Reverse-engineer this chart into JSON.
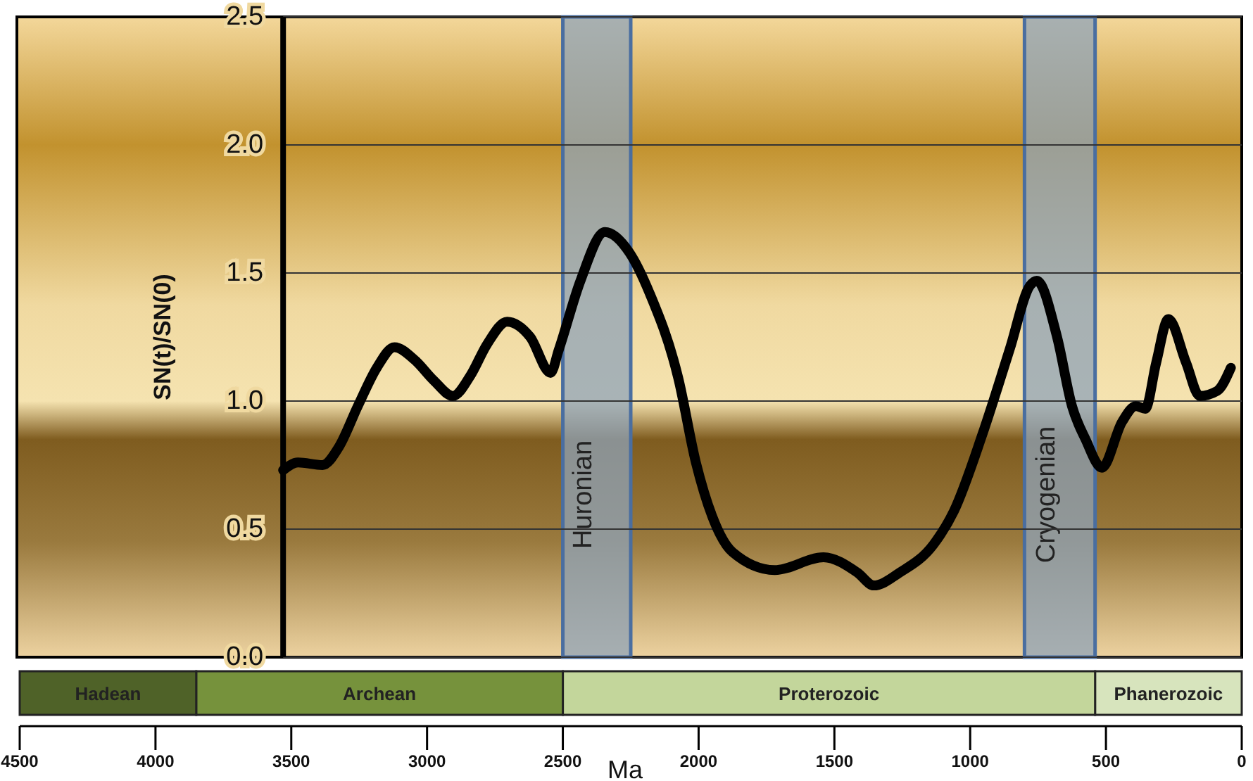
{
  "chart_data": [
    {
      "type": "line",
      "ylabel": "SN(t)/SN(0)",
      "x": [
        3530,
        3475,
        3385,
        3325,
        3255,
        3185,
        3120,
        3045,
        2975,
        2905,
        2840,
        2780,
        2705,
        2620,
        2545,
        2515,
        2435,
        2345,
        2255,
        2180,
        2075,
        2010,
        1950,
        1875,
        1720,
        1540,
        1415,
        1355,
        1260,
        1135,
        1060,
        955,
        855,
        780,
        755,
        680,
        625,
        575,
        515,
        440,
        390,
        355,
        315,
        270,
        205,
        155,
        90,
        40
      ],
      "series": [
        {
          "color": "#000000",
          "values": [
            0.73,
            0.76,
            0.75,
            0.82,
            0.98,
            1.13,
            1.21,
            1.16,
            1.08,
            1.02,
            1.1,
            1.22,
            1.31,
            1.25,
            1.11,
            1.2,
            1.47,
            1.66,
            1.58,
            1.42,
            1.09,
            0.76,
            0.55,
            0.41,
            0.34,
            0.39,
            0.33,
            0.28,
            0.33,
            0.44,
            0.57,
            0.87,
            1.2,
            1.45,
            1.47,
            1.25,
            0.98,
            0.85,
            0.74,
            0.92,
            0.98,
            0.97,
            1.15,
            1.32,
            1.15,
            1.02,
            1.04,
            1.13
          ]
        }
      ],
      "xlim": [
        4500,
        0
      ],
      "ylim": [
        0,
        2.5
      ],
      "yticks": [
        {
          "value": 0,
          "label": "0.0"
        },
        0.5,
        {
          "value": 1,
          "label": "1.0"
        },
        1.5,
        {
          "value": 2,
          "label": "2.0"
        },
        2.5
      ],
      "grid": "y",
      "tick_labels": "y",
      "line_style": "solid",
      "marker": "none",
      "bands": [
        {
          "axis": "x",
          "from": 2500,
          "to": 2250,
          "label": "Huronian",
          "color": "#8fa3b8"
        },
        {
          "axis": "x",
          "from": 800,
          "to": 540,
          "label": "Cryogenian",
          "color": "#8fa3b8"
        }
      ]
    },
    {
      "type": "bar",
      "orientation": "horizontal",
      "stacked": true,
      "categories": [
        null
      ],
      "xlabel": "Ma",
      "xlim": [
        4500,
        0
      ],
      "xticks": [
        4500,
        4000,
        3500,
        3000,
        2500,
        2000,
        1500,
        1000,
        500,
        0
      ],
      "tick_labels": "x",
      "series": [
        {
          "name": "Phanerozoic",
          "color": "#d7e4bd",
          "values": [
            540
          ]
        },
        {
          "name": "Proterozoic",
          "color": "#c3d69b",
          "values": [
            1960
          ]
        },
        {
          "name": "Archean",
          "color": "#76923c",
          "values": [
            1350
          ]
        },
        {
          "name": "Hadean",
          "color": "#4f6228",
          "values": [
            650
          ]
        }
      ]
    }
  ]
}
